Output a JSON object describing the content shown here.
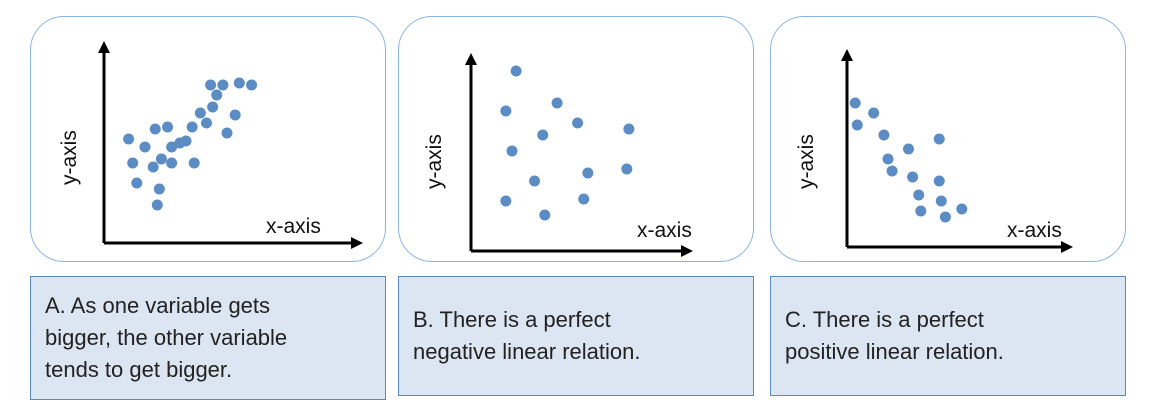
{
  "labels": {
    "x": "x-axis",
    "y": "y-axis"
  },
  "colors": {
    "point": "#5b8cc4",
    "caption_bg": "#dce6f2",
    "caption_border": "#5b87c5",
    "panel_border": "#8db3e2"
  },
  "captions": {
    "a": [
      "A. As one variable gets",
      "bigger, the other variable",
      "tends to get bigger."
    ],
    "b": [
      "B. There is a perfect",
      "negative linear relation."
    ],
    "c": [
      "C. There is a perfect",
      "positive linear relation."
    ]
  },
  "chart_data": [
    {
      "type": "scatter",
      "title": "",
      "xlabel": "x-axis",
      "ylabel": "y-axis",
      "xlim": [
        0,
        100
      ],
      "ylim": [
        0,
        100
      ],
      "points": [
        [
          12,
          52
        ],
        [
          14,
          40
        ],
        [
          16,
          30
        ],
        [
          20,
          48
        ],
        [
          25,
          57
        ],
        [
          24,
          38
        ],
        [
          27,
          27
        ],
        [
          26,
          19
        ],
        [
          28,
          42
        ],
        [
          31,
          58
        ],
        [
          33,
          40
        ],
        [
          33,
          48
        ],
        [
          37,
          50
        ],
        [
          40,
          51
        ],
        [
          43,
          58
        ],
        [
          44,
          40
        ],
        [
          47,
          65
        ],
        [
          50,
          60
        ],
        [
          52,
          79
        ],
        [
          55,
          74
        ],
        [
          53,
          68
        ],
        [
          58,
          79
        ],
        [
          60,
          55
        ],
        [
          64,
          64
        ],
        [
          66,
          80
        ],
        [
          72,
          79
        ]
      ]
    },
    {
      "type": "scatter",
      "title": "",
      "xlabel": "x-axis",
      "ylabel": "y-axis",
      "xlim": [
        0,
        100
      ],
      "ylim": [
        0,
        100
      ],
      "points": [
        [
          17,
          70
        ],
        [
          20,
          50
        ],
        [
          17,
          25
        ],
        [
          22,
          90
        ],
        [
          31,
          35
        ],
        [
          35,
          58
        ],
        [
          36,
          18
        ],
        [
          42,
          74
        ],
        [
          52,
          64
        ],
        [
          57,
          39
        ],
        [
          55,
          26
        ],
        [
          77,
          61
        ],
        [
          76,
          41
        ]
      ]
    },
    {
      "type": "scatter",
      "title": "",
      "xlabel": "x-axis",
      "ylabel": "y-axis",
      "xlim": [
        0,
        100
      ],
      "ylim": [
        0,
        100
      ],
      "points": [
        [
          4,
          72
        ],
        [
          5,
          61
        ],
        [
          13,
          67
        ],
        [
          18,
          56
        ],
        [
          20,
          44
        ],
        [
          22,
          38
        ],
        [
          30,
          49
        ],
        [
          32,
          35
        ],
        [
          35,
          26
        ],
        [
          36,
          18
        ],
        [
          45,
          54
        ],
        [
          45,
          33
        ],
        [
          46,
          23
        ],
        [
          48,
          15
        ],
        [
          56,
          19
        ]
      ]
    }
  ]
}
